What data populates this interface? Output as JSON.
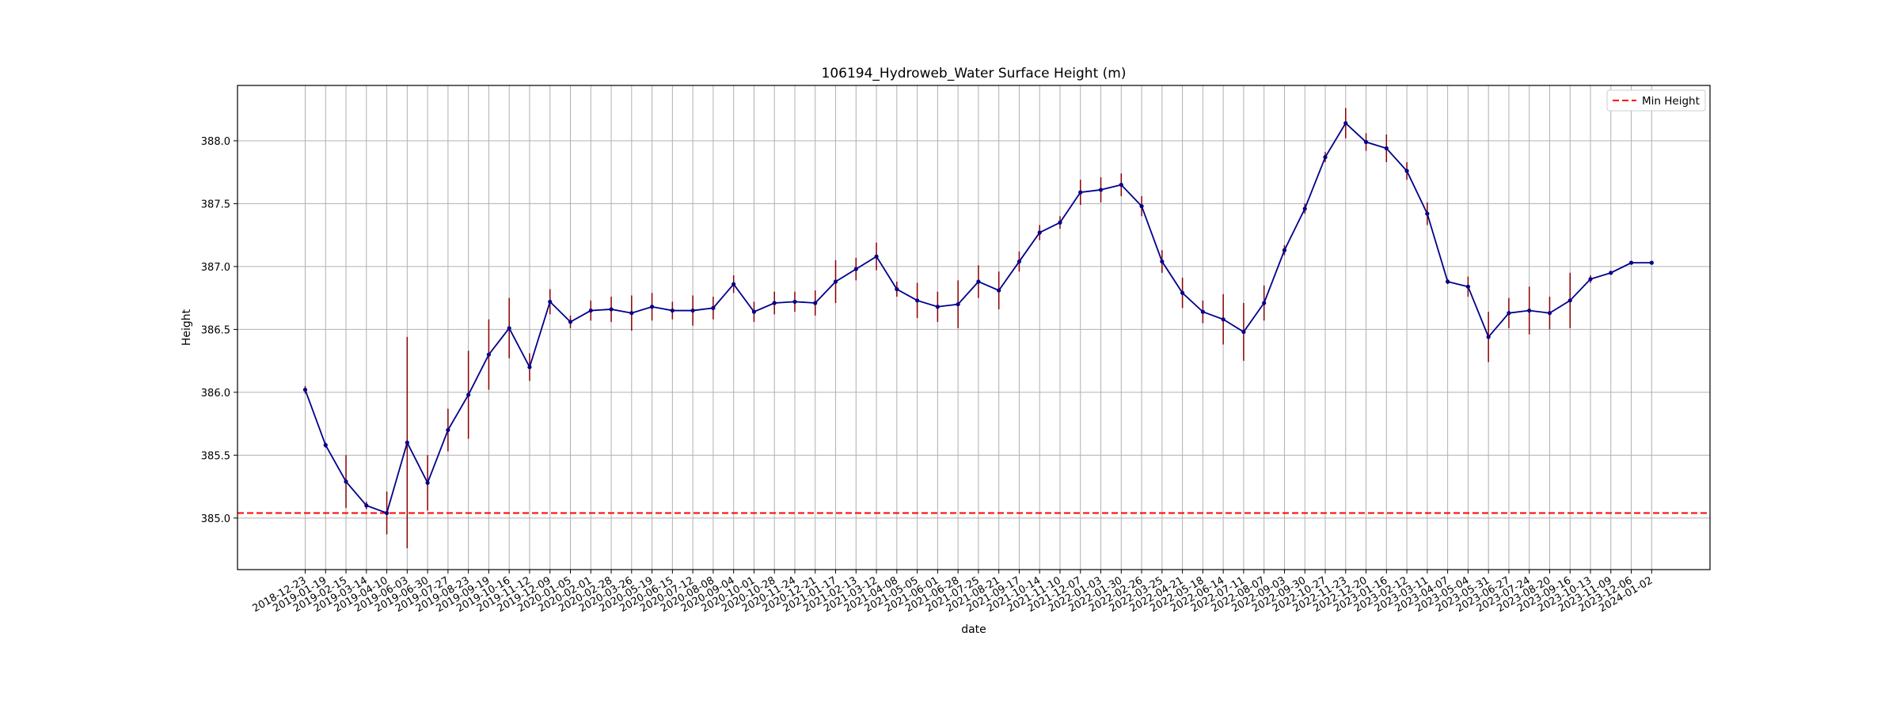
{
  "chart_data": {
    "type": "line",
    "title": "106194_Hydroweb_Water Surface Height (m)",
    "xlabel": "date",
    "ylabel": "Height",
    "ylim": [
      384.59,
      388.44
    ],
    "yticks": [
      "385.0",
      "385.5",
      "386.0",
      "386.5",
      "387.0",
      "387.5",
      "388.0"
    ],
    "grid": true,
    "legend_position": "upper right",
    "series": [
      {
        "type": "line-errorbar",
        "color": "#00008b",
        "error_color": "#8b0000",
        "x": [
          "2018-12-23",
          "2019-01-19",
          "2019-02-15",
          "2019-03-14",
          "2019-04-10",
          "2019-06-03",
          "2019-06-30",
          "2019-07-27",
          "2019-08-23",
          "2019-09-19",
          "2019-10-16",
          "2019-11-12",
          "2019-12-09",
          "2020-01-05",
          "2020-02-01",
          "2020-02-28",
          "2020-03-26",
          "2020-05-19",
          "2020-06-15",
          "2020-07-12",
          "2020-08-08",
          "2020-09-04",
          "2020-10-01",
          "2020-10-28",
          "2020-11-24",
          "2020-12-21",
          "2021-01-17",
          "2021-02-13",
          "2021-03-12",
          "2021-04-08",
          "2021-05-05",
          "2021-06-01",
          "2021-06-28",
          "2021-07-25",
          "2021-08-21",
          "2021-09-17",
          "2021-10-14",
          "2021-11-10",
          "2021-12-07",
          "2022-01-03",
          "2022-01-30",
          "2022-02-26",
          "2022-03-25",
          "2022-04-21",
          "2022-05-18",
          "2022-06-14",
          "2022-07-11",
          "2022-08-07",
          "2022-09-03",
          "2022-09-30",
          "2022-10-27",
          "2022-11-23",
          "2022-12-20",
          "2023-01-16",
          "2023-02-12",
          "2023-03-11",
          "2023-04-07",
          "2023-05-04",
          "2023-05-31",
          "2023-06-27",
          "2023-07-24",
          "2023-08-20",
          "2023-09-16",
          "2023-10-13",
          "2023-11-09",
          "2023-12-06",
          "2024-01-02"
        ],
        "y": [
          386.02,
          385.58,
          385.29,
          385.1,
          385.04,
          385.6,
          385.28,
          385.7,
          385.98,
          386.3,
          386.51,
          386.2,
          386.72,
          386.56,
          386.65,
          386.66,
          386.63,
          386.68,
          386.65,
          386.65,
          386.67,
          386.86,
          386.64,
          386.71,
          386.72,
          386.71,
          386.88,
          386.98,
          387.08,
          386.82,
          386.73,
          386.68,
          386.7,
          386.88,
          386.81,
          387.04,
          387.27,
          387.35,
          387.59,
          387.61,
          387.65,
          387.48,
          387.04,
          386.79,
          386.64,
          386.58,
          386.48,
          386.71,
          387.13,
          387.46,
          387.87,
          388.14,
          387.99,
          387.94,
          387.76,
          387.42,
          386.88,
          386.84,
          386.44,
          386.63,
          386.65,
          386.63,
          386.73,
          386.9,
          386.95,
          387.03,
          387.03
        ],
        "error": [
          0.03,
          0.02,
          0.21,
          0.03,
          0.17,
          0.84,
          0.22,
          0.17,
          0.35,
          0.28,
          0.24,
          0.11,
          0.1,
          0.05,
          0.08,
          0.1,
          0.14,
          0.11,
          0.07,
          0.12,
          0.09,
          0.07,
          0.08,
          0.09,
          0.08,
          0.1,
          0.17,
          0.09,
          0.11,
          0.06,
          0.14,
          0.12,
          0.19,
          0.13,
          0.15,
          0.08,
          0.06,
          0.05,
          0.1,
          0.1,
          0.09,
          0.08,
          0.09,
          0.12,
          0.09,
          0.2,
          0.23,
          0.14,
          0.04,
          0.04,
          0.04,
          0.12,
          0.07,
          0.11,
          0.07,
          0.09,
          0.02,
          0.08,
          0.2,
          0.12,
          0.19,
          0.13,
          0.22,
          0.03,
          0.01,
          0.01,
          0.01
        ]
      }
    ],
    "reference_lines": [
      {
        "name": "Min Height",
        "y": 385.04,
        "color": "#ff0000",
        "style": "dashed"
      }
    ]
  }
}
